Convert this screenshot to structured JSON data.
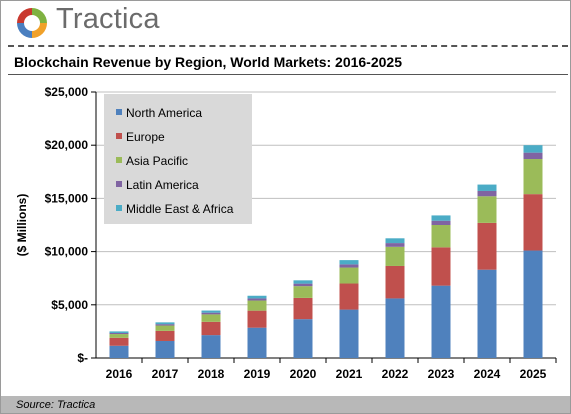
{
  "brand": {
    "name": "Tractica",
    "logo_colors": [
      "#7fb241",
      "#f0a12a",
      "#4a7fc0",
      "#c9392f"
    ]
  },
  "source_note": "Source: Tractica",
  "chart_data": {
    "type": "bar",
    "stacked": true,
    "title": "Blockchain Revenue by Region, World Markets: 2016-2025",
    "xlabel": "",
    "ylabel": "($ Millions)",
    "ylim": [
      0,
      25000
    ],
    "y_ticks": [
      0,
      5000,
      10000,
      15000,
      20000,
      25000
    ],
    "y_tick_labels": [
      "$-",
      "$5,000",
      "$10,000",
      "$15,000",
      "$20,000",
      "$25,000"
    ],
    "grid": true,
    "legend_position": "top-left",
    "categories": [
      "2016",
      "2017",
      "2018",
      "2019",
      "2020",
      "2021",
      "2022",
      "2023",
      "2024",
      "2025"
    ],
    "series": [
      {
        "name": "North America",
        "color": "#4f81bd",
        "values": [
          1150,
          1600,
          2150,
          2850,
          3650,
          4550,
          5600,
          6800,
          8300,
          10100
        ]
      },
      {
        "name": "Europe",
        "color": "#c0504d",
        "values": [
          750,
          950,
          1250,
          1600,
          2000,
          2450,
          3050,
          3600,
          4400,
          5300
        ]
      },
      {
        "name": "Asia Pacific",
        "color": "#9bbb59",
        "values": [
          350,
          500,
          700,
          950,
          1100,
          1500,
          1800,
          2100,
          2500,
          3300
        ]
      },
      {
        "name": "Latin America",
        "color": "#8064a2",
        "values": [
          100,
          130,
          160,
          200,
          240,
          300,
          350,
          400,
          500,
          600
        ]
      },
      {
        "name": "Middle East & Africa",
        "color": "#4bacc6",
        "values": [
          150,
          170,
          200,
          250,
          310,
          400,
          450,
          500,
          600,
          700
        ]
      }
    ]
  }
}
